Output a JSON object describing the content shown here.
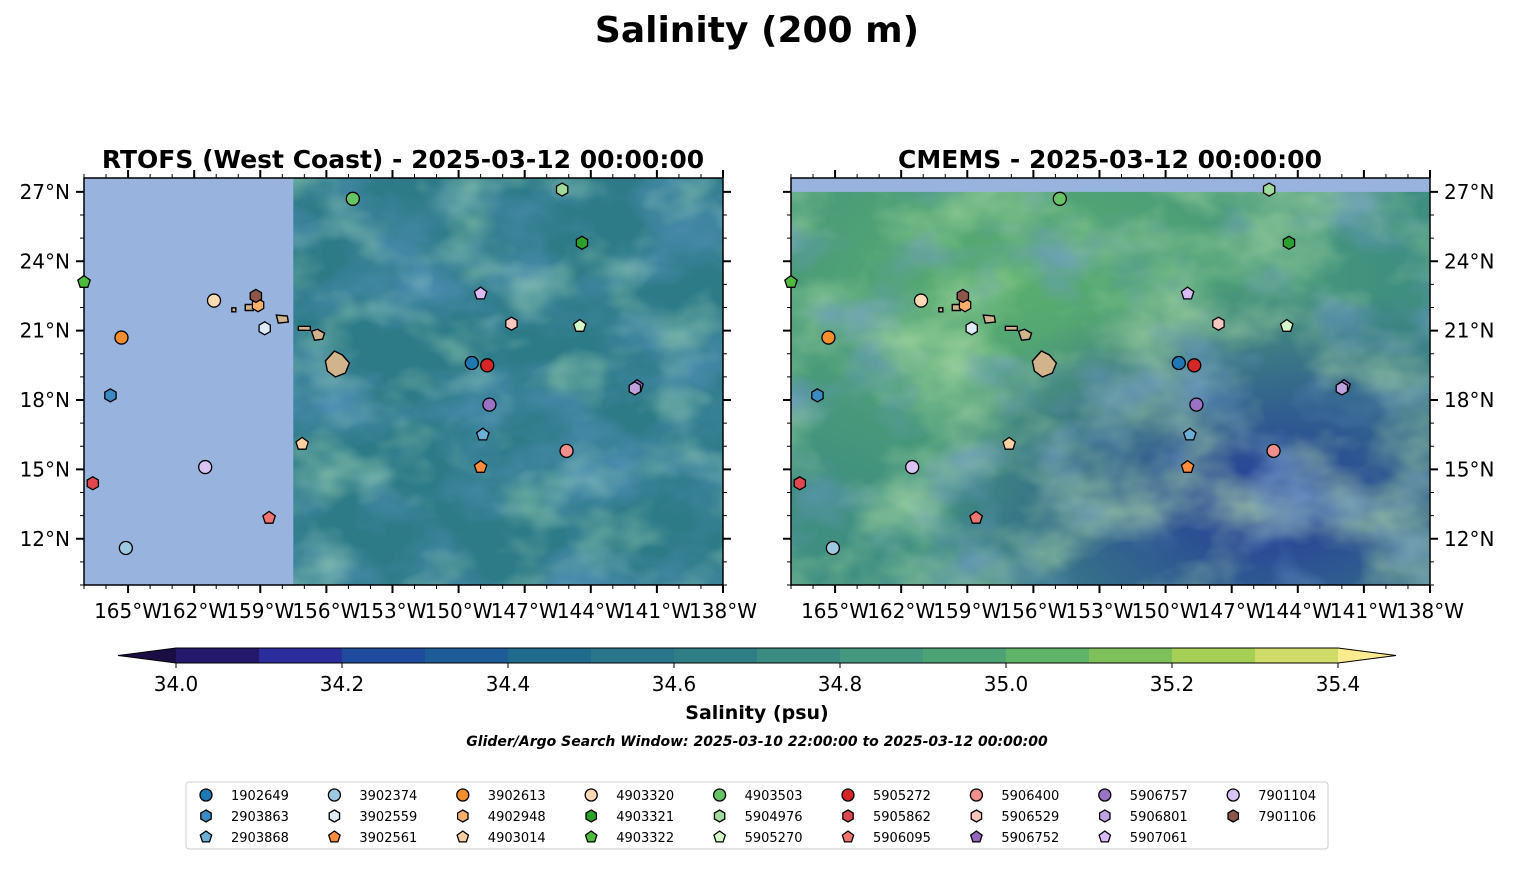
{
  "figure": {
    "title": "Salinity (200 m)",
    "colorbar_label": "Salinity (psu)",
    "search_window": "Glider/Argo Search Window: 2025-03-10 22:00:00 to 2025-03-12 00:00:00"
  },
  "chart_data": {
    "type": "heatmap",
    "variable": "Salinity",
    "depth": "200 m",
    "panels": [
      {
        "title": "RTOFS (West Coast) - 2025-03-12 00:00:00",
        "model_west_edge_lon": -157.5,
        "tick_side": "left"
      },
      {
        "title": "CMEMS - 2025-03-12 00:00:00",
        "model_north_edge_lat": 27.0,
        "tick_side": "right"
      }
    ],
    "xlim": [
      -167.0,
      -138.0
    ],
    "ylim": [
      10.0,
      27.6
    ],
    "x_ticks": [
      -165,
      -162,
      -159,
      -156,
      -153,
      -150,
      -147,
      -144,
      -141,
      -138
    ],
    "x_tick_labels": [
      "165°W",
      "162°W",
      "159°W",
      "156°W",
      "153°W",
      "150°W",
      "147°W",
      "144°W",
      "141°W",
      "138°W"
    ],
    "y_ticks": [
      12,
      15,
      18,
      21,
      24,
      27
    ],
    "y_tick_labels": [
      "12°N",
      "15°N",
      "18°N",
      "21°N",
      "24°N",
      "27°N"
    ],
    "land_color": "#d2b48c",
    "nodata_color": "#98b4de",
    "colorbar": {
      "boundaries": [
        34.0,
        34.1,
        34.2,
        34.3,
        34.4,
        34.5,
        34.6,
        34.7,
        34.8,
        34.9,
        35.0,
        35.1,
        35.2,
        35.3,
        35.4
      ],
      "colors": [
        "#24186a",
        "#2a2d9a",
        "#1f4b9c",
        "#1d5c96",
        "#1f6b8e",
        "#2a758a",
        "#2f7e86",
        "#3b8b82",
        "#45977d",
        "#4ea376",
        "#60b46a",
        "#7ec15b",
        "#a6cf56",
        "#cfdc6a"
      ],
      "extend_under": "#1b0e45",
      "extend_over": "#fdec8f",
      "tick_values": [
        34.0,
        34.2,
        34.4,
        34.6,
        34.8,
        35.0,
        35.2,
        35.4
      ],
      "tick_labels": [
        "34.0",
        "34.2",
        "34.4",
        "34.6",
        "34.8",
        "35.0",
        "35.2",
        "35.4"
      ]
    },
    "floats": [
      {
        "id": "1902649",
        "marker": "circle",
        "color": "#1f77b4",
        "lon": -149.4,
        "lat": 19.6
      },
      {
        "id": "2903863",
        "marker": "hexagon",
        "color": "#3b8bc2",
        "lon": -165.8,
        "lat": 18.2
      },
      {
        "id": "2903868",
        "marker": "pentagon",
        "color": "#6baed6",
        "lon": -148.9,
        "lat": 16.5
      },
      {
        "id": "3902374",
        "marker": "circle",
        "color": "#9ecae1",
        "lon": -165.1,
        "lat": 11.6
      },
      {
        "id": "3902559",
        "marker": "hexagon",
        "color": "#deebf7",
        "lon": -158.8,
        "lat": 21.1
      },
      {
        "id": "3902561",
        "marker": "pentagon",
        "color": "#fd8d3c",
        "lon": -149.0,
        "lat": 15.1
      },
      {
        "id": "3902613",
        "marker": "circle",
        "color": "#f28e2b",
        "lon": -165.3,
        "lat": 20.7
      },
      {
        "id": "4902948",
        "marker": "hexagon",
        "color": "#fdae6b",
        "lon": -159.1,
        "lat": 22.1
      },
      {
        "id": "4903014",
        "marker": "pentagon",
        "color": "#fdd0a2",
        "lon": -157.1,
        "lat": 16.1
      },
      {
        "id": "4903320",
        "marker": "circle",
        "color": "#fdd9b4",
        "lon": -161.1,
        "lat": 22.3
      },
      {
        "id": "4903321",
        "marker": "hexagon",
        "color": "#2ca02c",
        "lon": -144.4,
        "lat": 24.8
      },
      {
        "id": "4903322",
        "marker": "pentagon",
        "color": "#4fbb3e",
        "lon": -167.0,
        "lat": 23.1
      },
      {
        "id": "4903503",
        "marker": "circle",
        "color": "#66c465",
        "lon": -154.8,
        "lat": 26.7
      },
      {
        "id": "5904976",
        "marker": "hexagon",
        "color": "#a1d99b",
        "lon": -145.3,
        "lat": 27.1
      },
      {
        "id": "5905270",
        "marker": "pentagon",
        "color": "#d3f7c6",
        "lon": -144.5,
        "lat": 21.2
      },
      {
        "id": "5905272",
        "marker": "circle",
        "color": "#d62728",
        "lon": -148.7,
        "lat": 19.5
      },
      {
        "id": "5905862",
        "marker": "hexagon",
        "color": "#e0474c",
        "lon": -166.6,
        "lat": 14.4
      },
      {
        "id": "5906095",
        "marker": "pentagon",
        "color": "#f07470",
        "lon": -158.6,
        "lat": 12.9
      },
      {
        "id": "5906400",
        "marker": "circle",
        "color": "#f08f8c",
        "lon": -145.1,
        "lat": 15.8
      },
      {
        "id": "5906529",
        "marker": "hexagon",
        "color": "#fcc5c0",
        "lon": -147.6,
        "lat": 21.3
      },
      {
        "id": "5906752",
        "marker": "pentagon",
        "color": "#9467bd",
        "lon": -141.9,
        "lat": 18.6
      },
      {
        "id": "5906757",
        "marker": "circle",
        "color": "#9b73c4",
        "lon": -148.6,
        "lat": 17.8
      },
      {
        "id": "5906801",
        "marker": "hexagon",
        "color": "#bfa2e0",
        "lon": -142.0,
        "lat": 18.5
      },
      {
        "id": "5907061",
        "marker": "pentagon",
        "color": "#d9bbf7",
        "lon": -149.0,
        "lat": 22.6
      },
      {
        "id": "7901104",
        "marker": "circle",
        "color": "#d8c3f2",
        "lon": -161.5,
        "lat": 15.1
      },
      {
        "id": "7901106",
        "marker": "hexagon",
        "color": "#8c564b",
        "lon": -159.2,
        "lat": 22.5
      }
    ],
    "legend": {
      "placement": "bottom",
      "columns": 9
    }
  }
}
